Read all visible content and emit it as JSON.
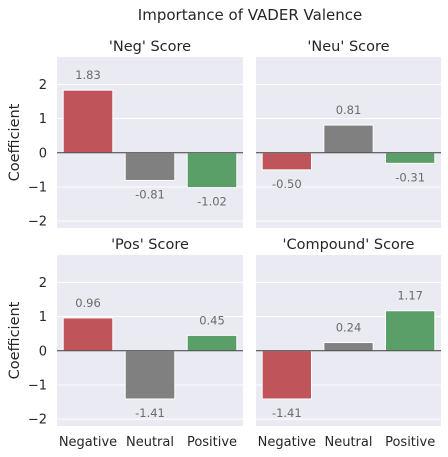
{
  "figure": {
    "title": "Importance of VADER Valence"
  },
  "chart_data": [
    {
      "type": "bar",
      "title": "'Neg' Score",
      "categories": [
        "Negative",
        "Neutral",
        "Positive"
      ],
      "values": [
        1.83,
        -0.81,
        -1.02
      ],
      "value_labels": [
        "1.83",
        "-0.81",
        "-1.02"
      ],
      "ylabel": "Coefficient",
      "ylim": [
        -2.2,
        2.8
      ],
      "yticks": [
        -2,
        -1,
        0,
        1,
        2
      ],
      "ytick_labels": [
        "−2",
        "−1",
        "0",
        "1",
        "2"
      ],
      "show_xticks": false,
      "show_yticks": true,
      "colors": [
        "#c0545b",
        "#808080",
        "#5a9f68"
      ],
      "grid": true
    },
    {
      "type": "bar",
      "title": "'Neu' Score",
      "categories": [
        "Negative",
        "Neutral",
        "Positive"
      ],
      "values": [
        -0.5,
        0.81,
        -0.31
      ],
      "value_labels": [
        "-0.50",
        "0.81",
        "-0.31"
      ],
      "ylabel": "",
      "ylim": [
        -2.2,
        2.8
      ],
      "yticks": [
        -2,
        -1,
        0,
        1,
        2
      ],
      "show_xticks": false,
      "show_yticks": false,
      "colors": [
        "#c0545b",
        "#808080",
        "#5a9f68"
      ],
      "grid": true
    },
    {
      "type": "bar",
      "title": "'Pos' Score",
      "categories": [
        "Negative",
        "Neutral",
        "Positive"
      ],
      "values": [
        0.96,
        -1.41,
        0.45
      ],
      "value_labels": [
        "0.96",
        "-1.41",
        "0.45"
      ],
      "ylabel": "Coefficient",
      "ylim": [
        -2.2,
        2.8
      ],
      "yticks": [
        -2,
        -1,
        0,
        1,
        2
      ],
      "ytick_labels": [
        "−2",
        "−1",
        "0",
        "1",
        "2"
      ],
      "show_xticks": true,
      "show_yticks": true,
      "colors": [
        "#c0545b",
        "#808080",
        "#5a9f68"
      ],
      "grid": true
    },
    {
      "type": "bar",
      "title": "'Compound' Score",
      "categories": [
        "Negative",
        "Neutral",
        "Positive"
      ],
      "values": [
        -1.41,
        0.24,
        1.17
      ],
      "value_labels": [
        "-1.41",
        "0.24",
        "1.17"
      ],
      "ylabel": "",
      "ylim": [
        -2.2,
        2.8
      ],
      "yticks": [
        -2,
        -1,
        0,
        1,
        2
      ],
      "show_xticks": true,
      "show_yticks": false,
      "colors": [
        "#c0545b",
        "#808080",
        "#5a9f68"
      ],
      "grid": true
    }
  ]
}
